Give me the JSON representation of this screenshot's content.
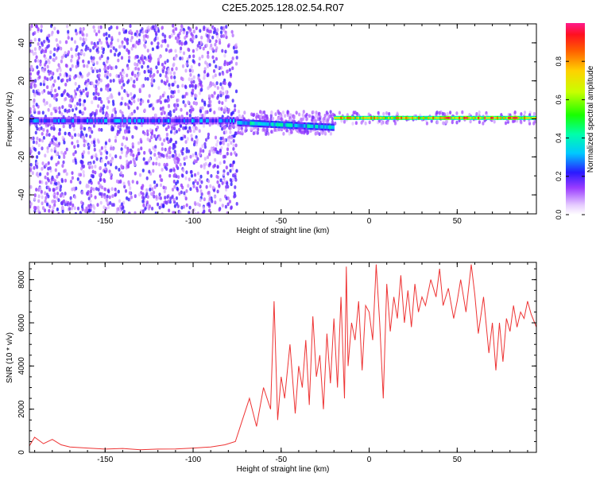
{
  "title": "C2E5.2025.128.02.54.R07",
  "chart_data": [
    {
      "type": "heatmap",
      "xlabel": "Height of straight line (km)",
      "ylabel": "Frequency (Hz)",
      "xlim": [
        -193,
        95
      ],
      "ylim": [
        -50,
        50
      ],
      "xticks": [
        -150,
        -100,
        -50,
        0,
        50
      ],
      "yticks": [
        -40,
        -20,
        0,
        20,
        40
      ],
      "grid": false,
      "colorbar": {
        "label": "Normalized spectral amplitude",
        "range": [
          0,
          1
        ],
        "ticks": [
          "0.0",
          "0.2",
          "0.4",
          "0.6",
          "0.8"
        ]
      },
      "segments": [
        {
          "x_start": -193,
          "x_end": -75,
          "freq_center": -1,
          "peak_amplitude": 0.35,
          "noise": "high"
        },
        {
          "x_start": -75,
          "x_end": -20,
          "freq_center": -2,
          "peak_amplitude": 0.45,
          "noise": "medium"
        },
        {
          "x_start": -20,
          "x_end": 40,
          "freq_center": 0.5,
          "peak_amplitude": 0.9,
          "noise": "low"
        },
        {
          "x_start": 40,
          "x_end": 95,
          "freq_center": 0.5,
          "peak_amplitude": 1.0,
          "noise": "low"
        }
      ]
    },
    {
      "type": "line",
      "xlabel": "Height of straight line (km)",
      "ylabel": "SNR (10 * v/v)",
      "xlim": [
        -193,
        95
      ],
      "ylim": [
        0,
        8800
      ],
      "xticks": [
        -150,
        -100,
        -50,
        0,
        50
      ],
      "yticks": [
        0,
        2000,
        4000,
        6000,
        8000
      ],
      "grid": false,
      "color": "#ee3333",
      "series": [
        {
          "x": [
            -193,
            -190,
            -185,
            -180,
            -175,
            -170,
            -160,
            -150,
            -140,
            -130,
            -120,
            -110,
            -100,
            -90,
            -82,
            -76,
            -72,
            -68,
            -64,
            -60,
            -56,
            -54,
            -52,
            -50,
            -48,
            -45,
            -42,
            -40,
            -38,
            -36,
            -34,
            -32,
            -30,
            -28,
            -26,
            -24,
            -22,
            -20,
            -18,
            -16,
            -14,
            -13,
            -12,
            -10,
            -8,
            -6,
            -4,
            -2,
            0,
            2,
            4,
            6,
            8,
            10,
            12,
            14,
            16,
            18,
            20,
            22,
            24,
            26,
            28,
            30,
            32,
            35,
            38,
            40,
            42,
            45,
            48,
            50,
            52,
            55,
            58,
            60,
            62,
            65,
            68,
            70,
            72,
            74,
            76,
            78,
            80,
            82,
            84,
            86,
            88,
            90,
            92,
            95
          ],
          "y": [
            300,
            700,
            400,
            600,
            350,
            250,
            200,
            150,
            180,
            120,
            150,
            160,
            200,
            250,
            350,
            500,
            1500,
            2500,
            1200,
            3000,
            2000,
            7000,
            1500,
            3500,
            2500,
            5000,
            1800,
            4000,
            3000,
            5200,
            2200,
            6300,
            3500,
            4500,
            2000,
            5500,
            3200,
            6200,
            3000,
            7200,
            2500,
            8600,
            4000,
            6000,
            5200,
            7000,
            3800,
            6800,
            6500,
            5200,
            8700,
            6000,
            2500,
            7800,
            5600,
            7200,
            6200,
            8200,
            6000,
            7500,
            5800,
            7800,
            6500,
            7200,
            6800,
            8000,
            7200,
            8500,
            6800,
            7600,
            6200,
            7000,
            8000,
            6500,
            8700,
            7300,
            5500,
            7200,
            4600,
            6000,
            3800,
            6000,
            4200,
            6200,
            5600,
            6800,
            5800,
            6500,
            6200,
            7000,
            6400,
            5800
          ]
        }
      ]
    }
  ]
}
